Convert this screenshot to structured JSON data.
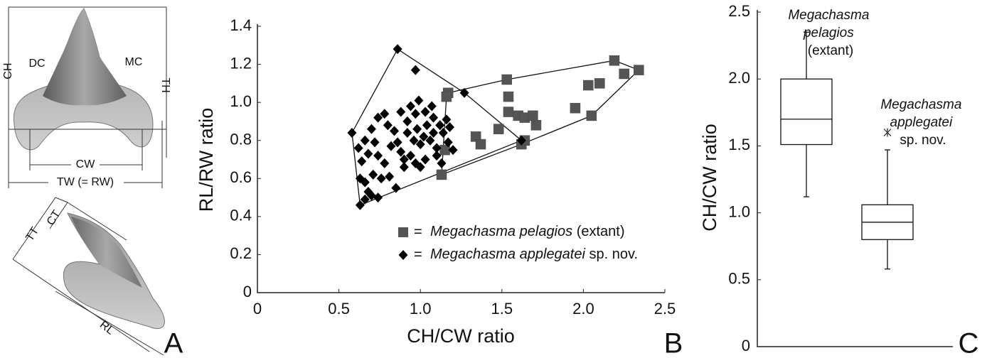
{
  "figure_a": {
    "labels": [
      "CH",
      "DC",
      "MC",
      "TH",
      "CW",
      "TW (= RW)",
      "CT",
      "TT",
      "RL"
    ],
    "panel_label": "A"
  },
  "chart_data": [
    {
      "type": "scatter",
      "panel_label": "B",
      "x_label": "CH/CW ratio",
      "y_label": "RL/RW ratio",
      "legend_prefix": "=",
      "xlim": [
        0,
        2.5
      ],
      "xticks": [
        0,
        0.5,
        {
          "value": 1,
          "label": "1.0"
        },
        1.5,
        {
          "value": 2,
          "label": "2.0"
        },
        2.5
      ],
      "ylim": [
        0,
        1.4
      ],
      "yticks": [
        0,
        0.2,
        0.4,
        0.6,
        0.8,
        {
          "value": 1,
          "label": "1.0"
        },
        1.2,
        1.4
      ],
      "series": [
        {
          "name": "Megachasma pelagios (extant)",
          "marker": "square",
          "color": "#555555",
          "x": [
            1.17,
            1.16,
            1.13,
            1.15,
            1.34,
            1.37,
            1.48,
            1.53,
            1.54,
            1.54,
            1.6,
            1.64,
            1.69,
            1.71,
            1.62,
            1.64,
            1.95,
            2.05,
            2.03,
            2.1,
            2.19,
            2.25,
            2.34
          ],
          "values": [
            1.05,
            1.03,
            0.62,
            0.75,
            0.82,
            0.78,
            0.86,
            1.12,
            1.03,
            0.95,
            0.93,
            0.92,
            0.93,
            0.88,
            0.78,
            0.8,
            0.97,
            0.93,
            1.09,
            1.1,
            1.22,
            1.15,
            1.17
          ]
        },
        {
          "name": "Megachasma applegatei sp. nov.",
          "marker": "diamond",
          "color": "#000000",
          "x": [
            0.86,
            0.97,
            0.58,
            0.63,
            0.66,
            0.7,
            0.74,
            0.68,
            0.63,
            0.66,
            0.71,
            0.76,
            0.81,
            0.85,
            0.64,
            0.68,
            0.74,
            0.72,
            0.66,
            0.62,
            0.7,
            0.74,
            0.78,
            0.8,
            0.84,
            0.86,
            0.82,
            0.88,
            0.9,
            0.94,
            0.97,
            1.0,
            1.03,
            0.96,
            0.92,
            0.98,
            1.02,
            1.06,
            1.1,
            1.08,
            1.04,
            0.92,
            0.88,
            0.94,
            0.99,
            0.97,
            1.03,
            1.08,
            1.12,
            1.14,
            1.17,
            1.2,
            1.18,
            1.16,
            1.13,
            1.1,
            1.27,
            1.62,
            1.07,
            1.0,
            0.9,
            0.78
          ],
          "values": [
            1.28,
            1.17,
            0.84,
            0.46,
            0.49,
            0.51,
            0.5,
            0.53,
            0.6,
            0.58,
            0.62,
            0.6,
            0.61,
            0.55,
            0.69,
            0.73,
            0.72,
            0.79,
            0.8,
            0.76,
            0.86,
            0.92,
            0.94,
            0.88,
            0.85,
            0.79,
            0.77,
            0.74,
            0.7,
            0.72,
            0.68,
            0.66,
            0.7,
            0.8,
            0.84,
            0.86,
            0.82,
            0.8,
            0.76,
            0.84,
            0.88,
            0.9,
            0.95,
            0.98,
            1.01,
            0.94,
            0.95,
            0.92,
            0.88,
            0.84,
            0.79,
            0.75,
            0.87,
            0.91,
            0.68,
            0.72,
            1.05,
            0.8,
            0.98,
            0.78,
            0.66,
            0.68
          ]
        }
      ]
    },
    {
      "type": "box",
      "panel_label": "C",
      "y_label": "CH/CW ratio",
      "ylim": [
        0,
        2.5
      ],
      "yticks": [
        0,
        0.5,
        {
          "value": 1,
          "label": "1.0"
        },
        1.5,
        {
          "value": 2,
          "label": "2.0"
        },
        2.5
      ],
      "categories": [
        "Megachasma pelagios (extant)",
        "Megachasma applegatei sp. nov."
      ],
      "boxes": [
        {
          "whislo": 1.12,
          "q1": 1.51,
          "med": 1.7,
          "q3": 2.0,
          "whishi": 2.35,
          "fliers": []
        },
        {
          "whislo": 0.58,
          "q1": 0.8,
          "med": 0.93,
          "q3": 1.06,
          "whishi": 1.47,
          "fliers": [
            1.6
          ]
        }
      ]
    }
  ]
}
